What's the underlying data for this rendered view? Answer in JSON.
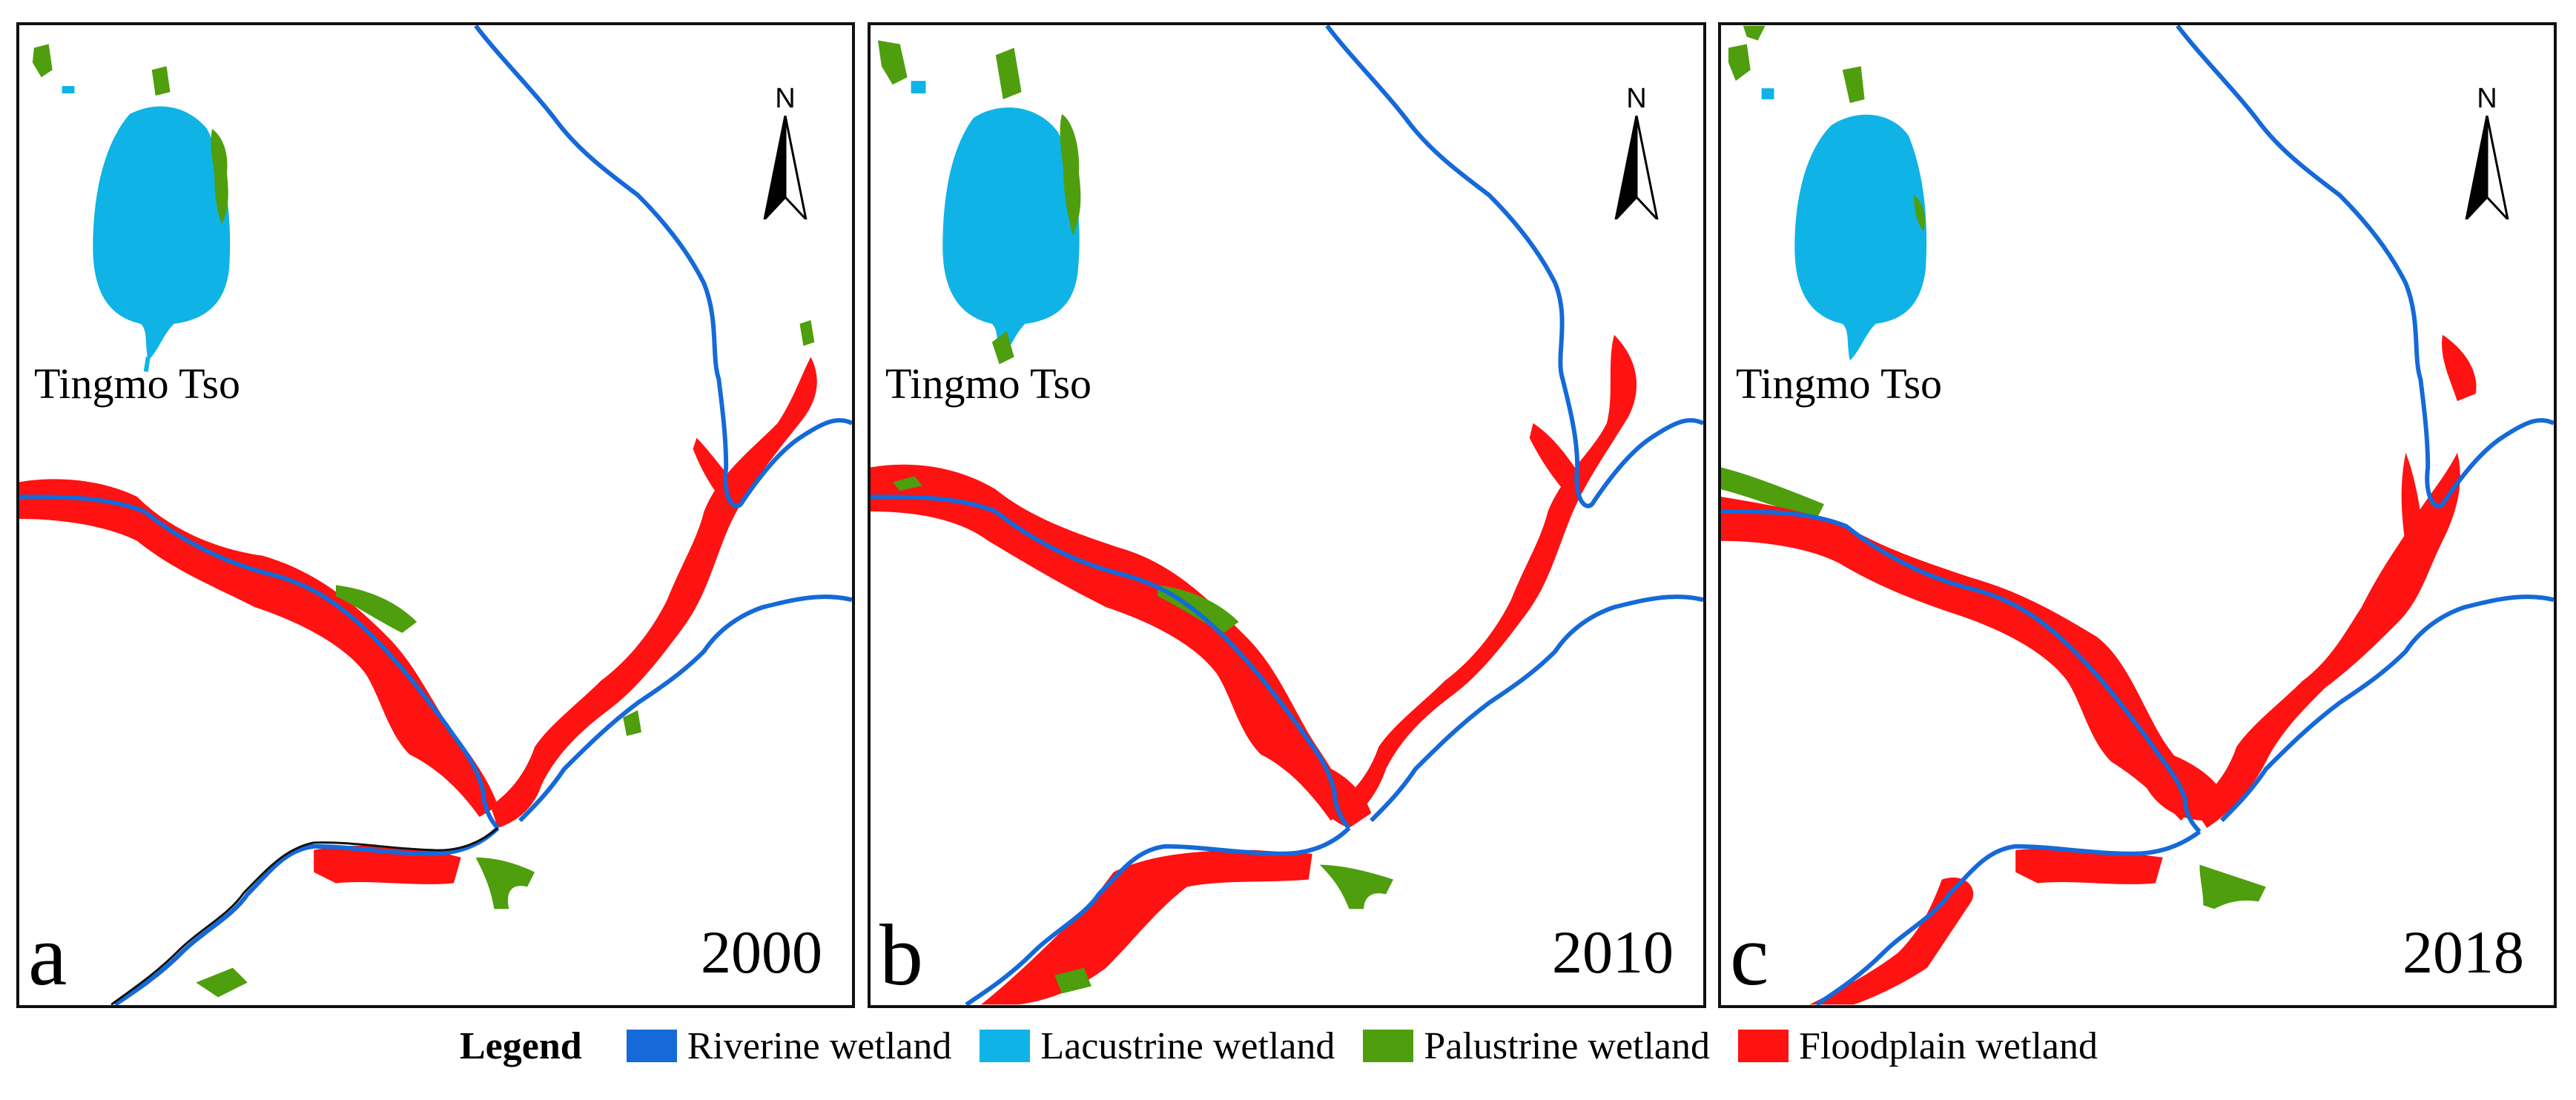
{
  "panels": [
    {
      "letter": "a",
      "year": "2000",
      "lake_label": "Tingmo Tso",
      "north_label": "N"
    },
    {
      "letter": "b",
      "year": "2010",
      "lake_label": "Tingmo Tso",
      "north_label": "N"
    },
    {
      "letter": "c",
      "year": "2018",
      "lake_label": "Tingmo Tso",
      "north_label": "N"
    }
  ],
  "legend": {
    "title": "Legend",
    "items": [
      {
        "label": "Riverine wetland",
        "color": "#1569d8"
      },
      {
        "label": "Lacustrine wetland",
        "color": "#0fb3e6"
      },
      {
        "label": "Palustrine wetland",
        "color": "#4e9e0d"
      },
      {
        "label": "Floodplain wetland",
        "color": "#ff1212"
      }
    ]
  },
  "colors": {
    "riverine": "#1569d8",
    "lacustrine": "#0fb3e6",
    "palustrine": "#4e9e0d",
    "floodplain": "#ff1212",
    "frame": "#111111"
  }
}
